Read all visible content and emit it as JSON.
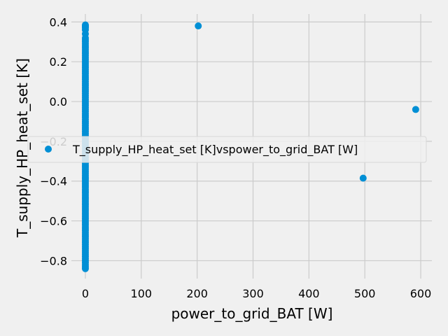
{
  "chart_data": {
    "type": "scatter",
    "title": "",
    "xlabel": "power_to_grid_BAT [W]",
    "ylabel": "T_supply_HP_heat_set [K]",
    "xlim": [
      -25,
      620
    ],
    "ylim": [
      -0.89,
      0.44
    ],
    "x_ticks": [
      0,
      100,
      200,
      300,
      400,
      500,
      600
    ],
    "y_ticks": [
      0.4,
      0.2,
      0.0,
      -0.2,
      -0.4,
      -0.6,
      -0.8
    ],
    "x_tick_labels": [
      "0",
      "100",
      "200",
      "300",
      "400",
      "500",
      "600"
    ],
    "y_tick_labels": [
      "0.4",
      "0.2",
      "0.0",
      "−0.2",
      "−0.4",
      "−0.6",
      "−0.8"
    ],
    "grid": true,
    "legend_position": "center-left",
    "series": [
      {
        "name": "T_supply_HP_heat_set [K]vspower_to_grid_BAT [W]",
        "color": "#008fd5",
        "points": [
          [
            0,
            0.385
          ],
          [
            0,
            0.38
          ],
          [
            0,
            0.375
          ],
          [
            0,
            0.37
          ],
          [
            0,
            0.36
          ],
          [
            0,
            0.34
          ],
          [
            0,
            0.32
          ],
          [
            0,
            0.31
          ],
          [
            0,
            0.3
          ],
          [
            0,
            0.29
          ],
          [
            0,
            0.28
          ],
          [
            0,
            0.27
          ],
          [
            0,
            0.26
          ],
          [
            0,
            0.25
          ],
          [
            0,
            0.24
          ],
          [
            0,
            0.23
          ],
          [
            0,
            0.22
          ],
          [
            0,
            0.21
          ],
          [
            0,
            0.2
          ],
          [
            0,
            0.19
          ],
          [
            0,
            0.18
          ],
          [
            0,
            0.17
          ],
          [
            0,
            0.16
          ],
          [
            0,
            0.15
          ],
          [
            0,
            0.14
          ],
          [
            0,
            0.13
          ],
          [
            0,
            0.12
          ],
          [
            0,
            0.11
          ],
          [
            0,
            0.1
          ],
          [
            0,
            0.09
          ],
          [
            0,
            0.08
          ],
          [
            0,
            0.07
          ],
          [
            0,
            0.06
          ],
          [
            0,
            0.05
          ],
          [
            0,
            0.04
          ],
          [
            0,
            0.03
          ],
          [
            0,
            0.02
          ],
          [
            0,
            0.01
          ],
          [
            0,
            0.0
          ],
          [
            0,
            -0.01
          ],
          [
            0,
            -0.02
          ],
          [
            0,
            -0.03
          ],
          [
            0,
            -0.04
          ],
          [
            0,
            -0.05
          ],
          [
            0,
            -0.06
          ],
          [
            0,
            -0.07
          ],
          [
            0,
            -0.08
          ],
          [
            0,
            -0.09
          ],
          [
            0,
            -0.1
          ],
          [
            0,
            -0.11
          ],
          [
            0,
            -0.12
          ],
          [
            0,
            -0.13
          ],
          [
            0,
            -0.14
          ],
          [
            0,
            -0.15
          ],
          [
            0,
            -0.16
          ],
          [
            0,
            -0.17
          ],
          [
            0,
            -0.18
          ],
          [
            0,
            -0.19
          ],
          [
            0,
            -0.2
          ],
          [
            0,
            -0.21
          ],
          [
            0,
            -0.22
          ],
          [
            0,
            -0.23
          ],
          [
            0,
            -0.24
          ],
          [
            0,
            -0.25
          ],
          [
            0,
            -0.26
          ],
          [
            0,
            -0.27
          ],
          [
            0,
            -0.28
          ],
          [
            0,
            -0.29
          ],
          [
            0,
            -0.3
          ],
          [
            0,
            -0.31
          ],
          [
            0,
            -0.32
          ],
          [
            0,
            -0.33
          ],
          [
            0,
            -0.34
          ],
          [
            0,
            -0.35
          ],
          [
            0,
            -0.36
          ],
          [
            0,
            -0.37
          ],
          [
            0,
            -0.38
          ],
          [
            0,
            -0.39
          ],
          [
            0,
            -0.4
          ],
          [
            0,
            -0.41
          ],
          [
            0,
            -0.42
          ],
          [
            0,
            -0.43
          ],
          [
            0,
            -0.44
          ],
          [
            0,
            -0.45
          ],
          [
            0,
            -0.46
          ],
          [
            0,
            -0.47
          ],
          [
            0,
            -0.48
          ],
          [
            0,
            -0.49
          ],
          [
            0,
            -0.5
          ],
          [
            0,
            -0.51
          ],
          [
            0,
            -0.52
          ],
          [
            0,
            -0.53
          ],
          [
            0,
            -0.54
          ],
          [
            0,
            -0.55
          ],
          [
            0,
            -0.56
          ],
          [
            0,
            -0.57
          ],
          [
            0,
            -0.58
          ],
          [
            0,
            -0.59
          ],
          [
            0,
            -0.6
          ],
          [
            0,
            -0.61
          ],
          [
            0,
            -0.62
          ],
          [
            0,
            -0.63
          ],
          [
            0,
            -0.64
          ],
          [
            0,
            -0.65
          ],
          [
            0,
            -0.66
          ],
          [
            0,
            -0.67
          ],
          [
            0,
            -0.68
          ],
          [
            0,
            -0.69
          ],
          [
            0,
            -0.7
          ],
          [
            0,
            -0.71
          ],
          [
            0,
            -0.72
          ],
          [
            0,
            -0.73
          ],
          [
            0,
            -0.74
          ],
          [
            0,
            -0.75
          ],
          [
            0,
            -0.76
          ],
          [
            0,
            -0.77
          ],
          [
            0,
            -0.78
          ],
          [
            0,
            -0.79
          ],
          [
            0,
            -0.8
          ],
          [
            0,
            -0.81
          ],
          [
            0,
            -0.82
          ],
          [
            0,
            -0.83
          ],
          [
            0,
            -0.84
          ],
          [
            202,
            0.38
          ],
          [
            497,
            -0.385
          ],
          [
            591,
            -0.04
          ]
        ]
      }
    ]
  }
}
